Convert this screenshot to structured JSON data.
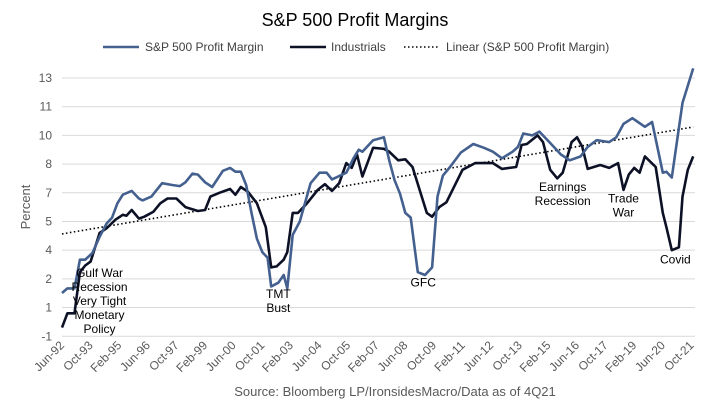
{
  "chart_data": {
    "type": "line",
    "title": "S&P 500 Profit Margins",
    "ylabel": "Percent",
    "xlabel": "",
    "source": "Source: Bloomberg LP/IronsidesMacro/Data as of 4Q21",
    "x_unit": "months since Jun-92",
    "xlim": [
      0,
      354
    ],
    "ylim": [
      -0.5,
      13
    ],
    "y_ticks": [
      {
        "value": 13,
        "label": "13"
      },
      {
        "value": 11.5,
        "label": "11"
      },
      {
        "value": 10,
        "label": "10"
      },
      {
        "value": 8.5,
        "label": "8"
      },
      {
        "value": 7,
        "label": "7"
      },
      {
        "value": 5.5,
        "label": "5"
      },
      {
        "value": 4,
        "label": "4"
      },
      {
        "value": 2.5,
        "label": "2"
      },
      {
        "value": 1,
        "label": "1"
      },
      {
        "value": -0.5,
        "label": "-1"
      }
    ],
    "x_ticks": [
      {
        "value": 0,
        "label": "Jun-92"
      },
      {
        "value": 16,
        "label": "Oct-93"
      },
      {
        "value": 32,
        "label": "Feb-95"
      },
      {
        "value": 48,
        "label": "Jun-96"
      },
      {
        "value": 64,
        "label": "Oct-97"
      },
      {
        "value": 80,
        "label": "Feb-99"
      },
      {
        "value": 96,
        "label": "Jun-00"
      },
      {
        "value": 112,
        "label": "Oct-01"
      },
      {
        "value": 128,
        "label": "Feb-03"
      },
      {
        "value": 144,
        "label": "Jun-04"
      },
      {
        "value": 160,
        "label": "Oct-05"
      },
      {
        "value": 176,
        "label": "Feb-07"
      },
      {
        "value": 192,
        "label": "Jun-08"
      },
      {
        "value": 208,
        "label": "Oct-09"
      },
      {
        "value": 224,
        "label": "Feb-11"
      },
      {
        "value": 240,
        "label": "Jun-12"
      },
      {
        "value": 256,
        "label": "Oct-13"
      },
      {
        "value": 272,
        "label": "Feb-15"
      },
      {
        "value": 288,
        "label": "Jun-16"
      },
      {
        "value": 304,
        "label": "Oct-17"
      },
      {
        "value": 320,
        "label": "Feb-19"
      },
      {
        "value": 336,
        "label": "Jun-20"
      },
      {
        "value": 352,
        "label": "Oct-21"
      }
    ],
    "grid": true,
    "legend_position": "top",
    "series": [
      {
        "name": "S&P 500 Profit Margin",
        "color": "#44608F",
        "style": "solid",
        "points": [
          [
            0,
            1.76
          ],
          [
            3,
            2.0
          ],
          [
            7,
            2.0
          ],
          [
            10,
            3.5
          ],
          [
            13,
            3.5
          ],
          [
            17,
            3.85
          ],
          [
            21,
            4.7
          ],
          [
            25,
            5.4
          ],
          [
            28,
            5.7
          ],
          [
            31,
            6.45
          ],
          [
            34,
            6.9
          ],
          [
            39,
            7.1
          ],
          [
            43,
            6.7
          ],
          [
            45,
            6.6
          ],
          [
            50,
            6.8
          ],
          [
            56,
            7.5
          ],
          [
            62,
            7.4
          ],
          [
            66,
            7.35
          ],
          [
            69,
            7.55
          ],
          [
            73,
            8.0
          ],
          [
            76,
            7.95
          ],
          [
            80,
            7.55
          ],
          [
            84,
            7.3
          ],
          [
            90,
            8.15
          ],
          [
            94,
            8.3
          ],
          [
            97,
            8.1
          ],
          [
            100,
            8.1
          ],
          [
            103,
            7.4
          ],
          [
            106,
            5.95
          ],
          [
            109,
            4.6
          ],
          [
            112,
            3.9
          ],
          [
            115,
            3.6
          ],
          [
            117,
            2.1
          ],
          [
            121,
            2.3
          ],
          [
            124,
            2.7
          ],
          [
            126,
            2.0
          ],
          [
            129,
            4.8
          ],
          [
            133,
            5.5
          ],
          [
            139,
            7.5
          ],
          [
            144,
            8.05
          ],
          [
            148,
            8.05
          ],
          [
            151,
            7.7
          ],
          [
            159,
            8.05
          ],
          [
            163,
            8.8
          ],
          [
            166,
            9.25
          ],
          [
            168,
            9.15
          ],
          [
            174,
            9.75
          ],
          [
            180,
            9.9
          ],
          [
            183,
            8.7
          ],
          [
            186,
            7.65
          ],
          [
            189,
            6.95
          ],
          [
            192,
            5.95
          ],
          [
            195,
            5.7
          ],
          [
            199,
            2.85
          ],
          [
            203,
            2.7
          ],
          [
            207,
            3.1
          ],
          [
            210,
            6.8
          ],
          [
            213,
            7.9
          ],
          [
            217,
            8.35
          ],
          [
            223,
            9.1
          ],
          [
            230,
            9.55
          ],
          [
            236,
            9.35
          ],
          [
            241,
            9.15
          ],
          [
            246,
            8.8
          ],
          [
            252,
            9.15
          ],
          [
            255,
            9.4
          ],
          [
            258,
            10.1
          ],
          [
            263,
            10.0
          ],
          [
            267,
            10.2
          ],
          [
            273,
            9.6
          ],
          [
            279,
            9.0
          ],
          [
            284,
            8.7
          ],
          [
            290,
            8.9
          ],
          [
            294,
            9.4
          ],
          [
            299,
            9.75
          ],
          [
            306,
            9.65
          ],
          [
            310,
            9.9
          ],
          [
            314,
            10.6
          ],
          [
            319,
            10.9
          ],
          [
            326,
            10.45
          ],
          [
            330,
            10.7
          ],
          [
            336,
            8.05
          ],
          [
            338,
            8.1
          ],
          [
            341,
            7.8
          ],
          [
            347,
            11.7
          ],
          [
            353,
            13.5
          ]
        ]
      },
      {
        "name": "Industrials",
        "color": "#0D1126",
        "style": "solid",
        "points": [
          [
            0,
            -0.05
          ],
          [
            3,
            0.7
          ],
          [
            7,
            0.7
          ],
          [
            10,
            2.85
          ],
          [
            13,
            3.2
          ],
          [
            16,
            3.4
          ],
          [
            21,
            4.9
          ],
          [
            25,
            5.15
          ],
          [
            30,
            5.6
          ],
          [
            34,
            5.85
          ],
          [
            36,
            5.8
          ],
          [
            39,
            6.1
          ],
          [
            43,
            5.65
          ],
          [
            46,
            5.75
          ],
          [
            51,
            6.0
          ],
          [
            55,
            6.45
          ],
          [
            59,
            6.7
          ],
          [
            64,
            6.7
          ],
          [
            69,
            6.25
          ],
          [
            76,
            6.05
          ],
          [
            80,
            6.1
          ],
          [
            83,
            6.8
          ],
          [
            88,
            7.0
          ],
          [
            94,
            7.2
          ],
          [
            97,
            6.9
          ],
          [
            100,
            7.3
          ],
          [
            104,
            7.05
          ],
          [
            109,
            6.45
          ],
          [
            114,
            5.2
          ],
          [
            117,
            3.1
          ],
          [
            120,
            3.15
          ],
          [
            124,
            3.5
          ],
          [
            126,
            3.9
          ],
          [
            129,
            5.95
          ],
          [
            132,
            5.95
          ],
          [
            137,
            6.45
          ],
          [
            143,
            7.15
          ],
          [
            147,
            7.45
          ],
          [
            151,
            7.1
          ],
          [
            155,
            7.5
          ],
          [
            159,
            8.55
          ],
          [
            162,
            8.3
          ],
          [
            165,
            9.0
          ],
          [
            168,
            7.85
          ],
          [
            174,
            9.35
          ],
          [
            180,
            9.3
          ],
          [
            183,
            9.15
          ],
          [
            188,
            8.7
          ],
          [
            192,
            8.75
          ],
          [
            196,
            8.35
          ],
          [
            204,
            5.95
          ],
          [
            207,
            5.75
          ],
          [
            211,
            6.25
          ],
          [
            215,
            6.5
          ],
          [
            224,
            8.2
          ],
          [
            231,
            8.55
          ],
          [
            241,
            8.55
          ],
          [
            246,
            8.25
          ],
          [
            254,
            8.35
          ],
          [
            257,
            9.5
          ],
          [
            260,
            9.55
          ],
          [
            266,
            10.0
          ],
          [
            269,
            9.65
          ],
          [
            273,
            8.2
          ],
          [
            277,
            7.75
          ],
          [
            280,
            8.05
          ],
          [
            285,
            9.65
          ],
          [
            288,
            9.9
          ],
          [
            291,
            9.4
          ],
          [
            294,
            8.25
          ],
          [
            301,
            8.45
          ],
          [
            306,
            8.3
          ],
          [
            311,
            8.55
          ],
          [
            314,
            7.15
          ],
          [
            317,
            7.95
          ],
          [
            320,
            8.3
          ],
          [
            323,
            8.05
          ],
          [
            326,
            8.9
          ],
          [
            332,
            8.35
          ],
          [
            336,
            5.95
          ],
          [
            338,
            5.2
          ],
          [
            341,
            4.0
          ],
          [
            345,
            4.15
          ],
          [
            347,
            6.8
          ],
          [
            350,
            8.2
          ],
          [
            353,
            8.9
          ]
        ]
      },
      {
        "name": "Linear (S&P 500 Profit Margin)",
        "color": "#000000",
        "style": "dotted",
        "points": [
          [
            0,
            4.85
          ],
          [
            353,
            10.44
          ]
        ]
      }
    ],
    "annotations": [
      {
        "lines": [
          "Gulf War",
          "Recession",
          "Very Tight",
          "Monetary",
          "Policy"
        ],
        "x": 21,
        "y": 2.6
      },
      {
        "lines": [
          "TMT",
          "Bust"
        ],
        "x": 121,
        "y": 1.5
      },
      {
        "lines": [
          "GFC"
        ],
        "x": 202,
        "y": 2.1
      },
      {
        "lines": [
          "Earnings",
          "Recession"
        ],
        "x": 280,
        "y": 7.1
      },
      {
        "lines": [
          "Trade",
          "War"
        ],
        "x": 314,
        "y": 6.5
      },
      {
        "lines": [
          "Covid"
        ],
        "x": 343,
        "y": 3.3
      }
    ]
  }
}
